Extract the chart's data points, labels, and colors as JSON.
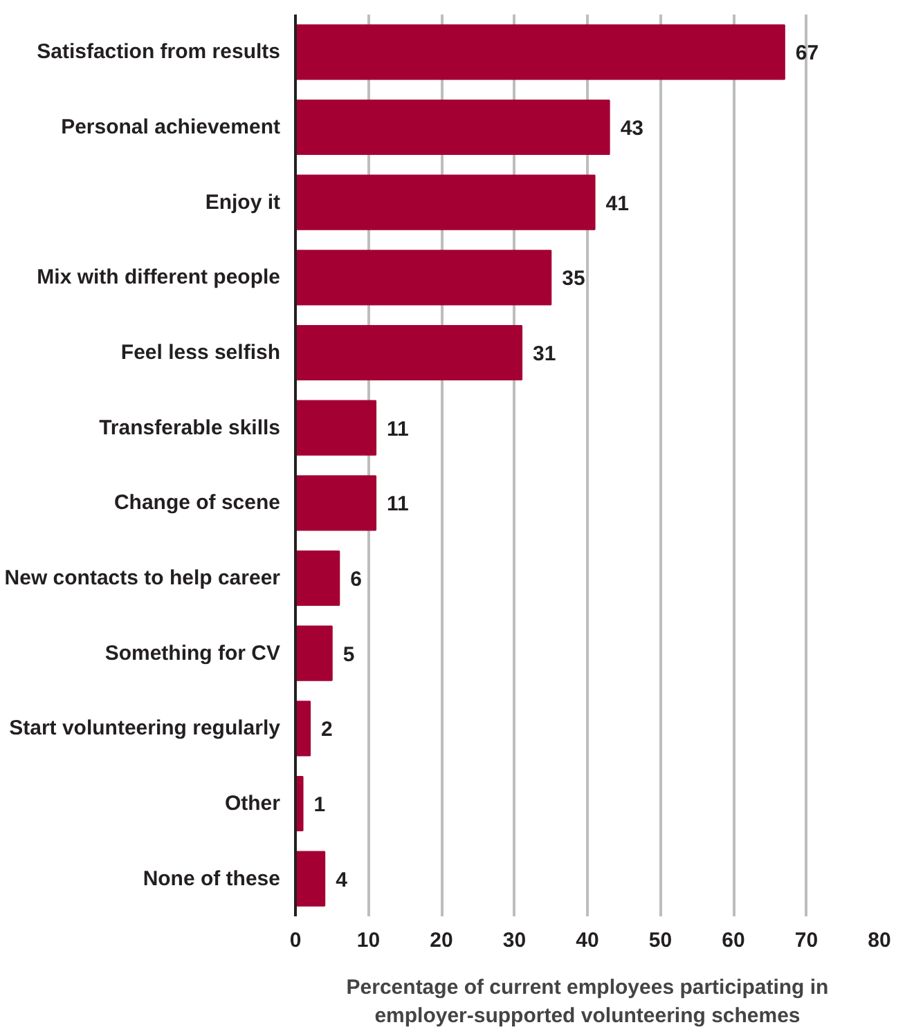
{
  "chart_data": {
    "type": "bar",
    "orientation": "horizontal",
    "xlabel": "Percentage of current employees participating in\nemployer-supported volunteering schemes",
    "categories": [
      "Satisfaction from results",
      "Personal achievement",
      "Enjoy it",
      "Mix with different people",
      "Feel less selfish",
      "Transferable skills",
      "Change of scene",
      "New contacts to help career",
      "Something for CV",
      "Start volunteering regularly",
      "Other",
      "None of these"
    ],
    "values": [
      67,
      43,
      41,
      35,
      31,
      11,
      11,
      6,
      5,
      2,
      1,
      4
    ],
    "color": "#a50034",
    "xlim": [
      0,
      80
    ],
    "xticks": [
      0,
      10,
      20,
      30,
      40,
      50,
      60,
      70,
      80
    ],
    "grid": "x",
    "data_labels": true
  }
}
